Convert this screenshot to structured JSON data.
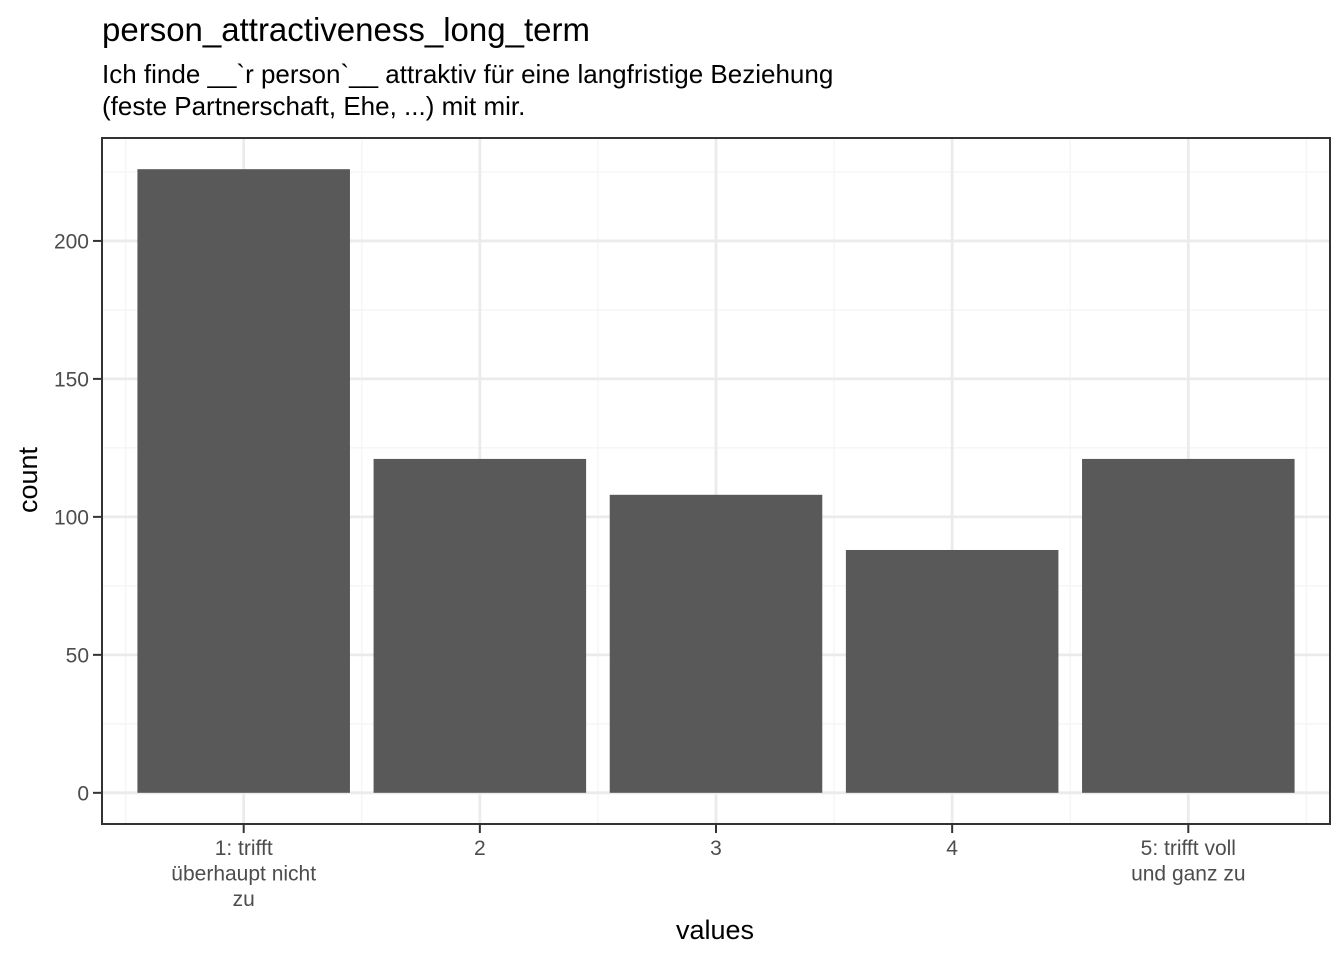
{
  "chart_data": {
    "type": "bar",
    "title": "person_attractiveness_long_term",
    "subtitle_lines": [
      "Ich finde __`r person`__ attraktiv für eine langfristige Beziehung",
      "(feste Partnerschaft, Ehe, ...) mit mir."
    ],
    "xlabel": "values",
    "ylabel": "count",
    "categories": [
      [
        "1: trifft",
        "überhaupt nicht",
        "zu"
      ],
      [
        "2"
      ],
      [
        "3"
      ],
      [
        "4"
      ],
      [
        "5: trifft voll",
        "und ganz zu"
      ]
    ],
    "values": [
      226,
      121,
      108,
      88,
      121
    ],
    "ylim": [
      -11.3,
      237.3
    ],
    "y_ticks": [
      0,
      50,
      100,
      150,
      200
    ],
    "grid": true,
    "legend": "none",
    "colors": {
      "bar": "#595959",
      "grid_major": "#ebebeb",
      "grid_minor": "#f5f5f5",
      "panel_border": "#333333",
      "tick": "#333333",
      "tick_label": "#4d4d4d"
    }
  }
}
